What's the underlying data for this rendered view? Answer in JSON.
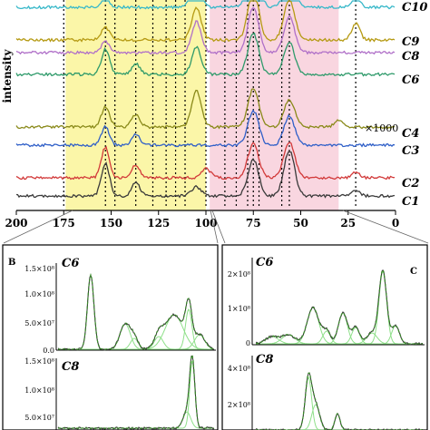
{
  "panel_a": {
    "ylabel": "intensity",
    "annotation": "×1000",
    "xticks": [
      "200",
      "175",
      "150",
      "125",
      "100",
      "75",
      "50",
      "25",
      "0"
    ],
    "yellow_region": [
      174,
      100
    ],
    "pink_region": [
      98,
      30
    ],
    "dotted_markers_ppm": [
      175,
      153,
      148,
      137,
      128,
      121,
      116,
      111,
      100,
      90,
      84,
      78,
      75,
      72,
      60,
      56,
      21
    ],
    "series_labels": [
      "C10",
      "C9",
      "C8",
      "C6",
      "C4",
      "C3",
      "C2",
      "C1"
    ],
    "colors": [
      "#37b8c9",
      "#b59a13",
      "#b070c8",
      "#2e9a6a",
      "#8a8a1a",
      "#2f5fc8",
      "#d23a3a",
      "#3a3a3a"
    ]
  },
  "panel_b": {
    "label": "B",
    "top_sample": "C6",
    "bottom_sample": "C8",
    "top_yticks": [
      "1.5×10⁸",
      "1.0×10⁸",
      "5.0×10⁷",
      "0.0"
    ],
    "bottom_yticks": [
      "1.5×10⁸",
      "1.0×10⁸",
      "5.0×10⁷"
    ]
  },
  "panel_c": {
    "label": "C",
    "top_sample": "C6",
    "bottom_sample": "C8",
    "top_yticks": [
      "2×10⁸",
      "1×10⁸",
      "0"
    ],
    "bottom_yticks": [
      "4×10⁸",
      "2×10⁸"
    ]
  },
  "chart_data": {
    "type": "line",
    "x_axis": {
      "range": [
        200,
        0
      ],
      "reversed": true,
      "ticks": [
        200,
        175,
        150,
        125,
        100,
        75,
        50,
        25,
        0
      ]
    },
    "series": [
      {
        "name": "C10",
        "color": "#37b8c9",
        "peaks": [
          [
            153,
            10
          ],
          [
            105,
            40
          ],
          [
            75,
            60
          ],
          [
            56,
            40
          ],
          [
            21,
            12
          ]
        ]
      },
      {
        "name": "C9",
        "color": "#b59a13",
        "peaks": [
          [
            153,
            14
          ],
          [
            105,
            36
          ],
          [
            75,
            55
          ],
          [
            56,
            45
          ],
          [
            21,
            18
          ]
        ]
      },
      {
        "name": "C8",
        "color": "#b070c8",
        "peaks": [
          [
            153,
            12
          ],
          [
            105,
            34
          ],
          [
            75,
            50
          ],
          [
            56,
            40
          ]
        ]
      },
      {
        "name": "C6",
        "color": "#2e9a6a",
        "peaks": [
          [
            153,
            28
          ],
          [
            137,
            12
          ],
          [
            105,
            30
          ],
          [
            75,
            45
          ],
          [
            56,
            35
          ]
        ]
      },
      {
        "name": "C4",
        "color": "#8a8a1a",
        "peaks": [
          [
            153,
            22
          ],
          [
            137,
            14
          ],
          [
            105,
            40
          ],
          [
            75,
            42
          ],
          [
            56,
            30
          ],
          [
            30,
            8
          ]
        ]
      },
      {
        "name": "C3",
        "color": "#2f5fc8",
        "peaks": [
          [
            153,
            20
          ],
          [
            137,
            12
          ],
          [
            75,
            38
          ],
          [
            56,
            32
          ]
        ]
      },
      {
        "name": "C2",
        "color": "#d23a3a",
        "peaks": [
          [
            153,
            34
          ],
          [
            137,
            14
          ],
          [
            100,
            10
          ],
          [
            75,
            38
          ],
          [
            56,
            40
          ],
          [
            21,
            6
          ]
        ]
      },
      {
        "name": "C1",
        "color": "#3a3a3a",
        "peaks": [
          [
            153,
            36
          ],
          [
            137,
            16
          ],
          [
            105,
            10
          ],
          [
            75,
            40
          ],
          [
            56,
            50
          ],
          [
            21,
            6
          ]
        ]
      }
    ],
    "annotations": [
      "×1000"
    ]
  }
}
